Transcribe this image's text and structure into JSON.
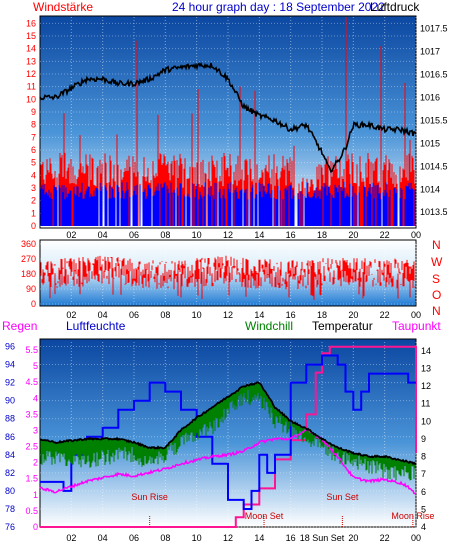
{
  "header": {
    "left_label": "Windstärke",
    "title": "24 hour graph day : 18 September 2022",
    "right_label": "Luftdruck"
  },
  "mid_header": {
    "compass": [
      "N",
      "W",
      "S",
      "O",
      "N"
    ]
  },
  "bottom_header": {
    "regen": "Regen",
    "luftfeuchte": "Luftfeuchte",
    "windchill": "Windchill",
    "temperatur": "Temperatur",
    "taupunkt": "Taupunkt"
  },
  "colors": {
    "wind_gust": "#ff0000",
    "wind_avg": "#0000ff",
    "pressure": "#000000",
    "direction": "#ff0000",
    "humidity": "#0000ff",
    "windchill": "#008000",
    "temperature": "#000000",
    "dewpoint": "#ff00ff",
    "rain": "#ff1493",
    "label_red": "#ff0000",
    "label_blue": "#0000cc",
    "label_green": "#008000",
    "label_magenta": "#ff00ff",
    "sky_top": "#0a4aa0",
    "sky_bottom": "#ffffff"
  },
  "chart_data": [
    {
      "id": "wind_pressure",
      "type": "line",
      "x_ticks": [
        "02",
        "04",
        "06",
        "08",
        "10",
        "12",
        "14",
        "16",
        "18",
        "20",
        "22",
        "00"
      ],
      "y_left_ticks": [
        "0",
        "1",
        "2",
        "3",
        "4",
        "5",
        "6",
        "7",
        "8",
        "9",
        "10",
        "11",
        "12",
        "13",
        "14",
        "15",
        "16"
      ],
      "y_left_range": [
        0,
        16.5
      ],
      "y_right_ticks": [
        "1013.5",
        "1014",
        "1014.5",
        "1015",
        "1015.5",
        "1016",
        "1016.5",
        "1017",
        "1017.5"
      ],
      "y_right_range": [
        1013.2,
        1017.75
      ],
      "series": [
        {
          "name": "Windstärke",
          "axis": "left",
          "kind": "wind_gust",
          "hours": [
            0,
            1,
            2,
            3,
            4,
            5,
            6,
            7,
            8,
            9,
            10,
            11,
            12,
            13,
            14,
            15,
            16,
            17,
            18,
            19,
            20,
            21,
            22,
            23,
            24
          ],
          "values": [
            5.5,
            5.5,
            5.5,
            5.5,
            5.5,
            5.5,
            5.5,
            5.5,
            5.5,
            5.5,
            5.5,
            5.5,
            5.5,
            5.5,
            5.5,
            5.5,
            5.5,
            3.5,
            5.5,
            5.5,
            5.5,
            5.5,
            5.5,
            5.5,
            5.5
          ]
        },
        {
          "name": "Luftdruck",
          "axis": "right",
          "kind": "pressure",
          "hours": [
            0,
            1,
            2,
            3,
            4,
            5,
            6,
            7,
            8,
            9,
            10,
            11,
            12,
            13,
            14,
            15,
            16,
            17,
            18,
            18.5,
            19,
            19.5,
            20,
            21,
            22,
            23,
            24
          ],
          "values": [
            1016.0,
            1016.0,
            1016.2,
            1016.4,
            1016.4,
            1016.3,
            1016.3,
            1016.4,
            1016.6,
            1016.65,
            1016.7,
            1016.7,
            1016.4,
            1015.8,
            1015.6,
            1015.5,
            1015.3,
            1015.4,
            1014.8,
            1014.4,
            1014.6,
            1014.9,
            1015.4,
            1015.4,
            1015.3,
            1015.3,
            1015.2
          ]
        }
      ]
    },
    {
      "id": "wind_direction",
      "type": "line",
      "x_ticks": [
        "02",
        "04",
        "06",
        "08",
        "10",
        "12",
        "14",
        "16",
        "18",
        "20",
        "22",
        "00"
      ],
      "y_ticks": [
        "0",
        "90",
        "180",
        "270",
        "360"
      ],
      "y_range": [
        0,
        360
      ],
      "series": [
        {
          "name": "Windrichtung",
          "kind": "direction",
          "hours": [
            0,
            2,
            4,
            6,
            8,
            10,
            12,
            14,
            16,
            18,
            20,
            22,
            24
          ],
          "values": [
            180,
            190,
            200,
            185,
            170,
            190,
            200,
            180,
            175,
            185,
            195,
            185,
            180
          ]
        }
      ]
    },
    {
      "id": "temp_humidity",
      "type": "line",
      "x_ticks": [
        "02",
        "04",
        "06",
        "08",
        "10",
        "12",
        "14",
        "16",
        "18 Sun Set",
        "20",
        "22",
        "00"
      ],
      "y_rain_ticks": [
        "0",
        "0.5",
        "1",
        "1.5",
        "2",
        "2.5",
        "3",
        "3.5",
        "4",
        "4.5",
        "5",
        "5.5"
      ],
      "y_rain_range": [
        0,
        5.75
      ],
      "y_hum_ticks": [
        "76",
        "78",
        "80",
        "82",
        "84",
        "86",
        "88",
        "90",
        "92",
        "94",
        "96"
      ],
      "y_hum_range": [
        76,
        96.5
      ],
      "y_temp_ticks": [
        "4",
        "5",
        "6",
        "7",
        "8",
        "9",
        "10",
        "11",
        "12",
        "13",
        "14"
      ],
      "y_temp_range": [
        4,
        14.5
      ],
      "annotations": [
        {
          "text": "Sun Rise",
          "hour": 7
        },
        {
          "text": "Moon Set",
          "hour": 14.3
        },
        {
          "text": "Sun Set",
          "hour": 19.3
        },
        {
          "text": "Moon Rise",
          "hour": 23.8
        }
      ],
      "series": [
        {
          "name": "Luftfeuchte",
          "axis": "hum",
          "kind": "humidity",
          "hours": [
            0,
            1,
            1.5,
            2,
            3,
            4,
            5,
            6,
            7,
            8,
            9,
            10,
            11,
            12,
            13,
            13.5,
            14,
            14.5,
            15,
            16,
            17,
            18,
            18.5,
            19,
            19.5,
            20,
            20.5,
            21,
            22,
            23,
            23.5,
            24
          ],
          "values": [
            81,
            81,
            80,
            84,
            86,
            87,
            89,
            90,
            92,
            91,
            89,
            86,
            83,
            79,
            78,
            80,
            84,
            82,
            84,
            92,
            94,
            95,
            95,
            94,
            91,
            89,
            91,
            93,
            93,
            93,
            92,
            92
          ]
        },
        {
          "name": "Windchill",
          "axis": "temp",
          "kind": "windchill",
          "hours": [
            0,
            1,
            2,
            3,
            4,
            5,
            6,
            7,
            8,
            9,
            10,
            11,
            12,
            13,
            14,
            15,
            16,
            17,
            18,
            19,
            20,
            21,
            22,
            23,
            24
          ],
          "values": [
            8.4,
            8.4,
            8.3,
            8.2,
            8.4,
            8.5,
            8.6,
            8.0,
            8.6,
            9.2,
            9.8,
            10.1,
            11.0,
            11.8,
            11.8,
            10.5,
            10.0,
            9.5,
            9.0,
            8.5,
            8.2,
            7.9,
            7.6,
            7.5,
            7.5
          ]
        },
        {
          "name": "Temperatur",
          "axis": "temp",
          "kind": "temperature",
          "hours": [
            0,
            1,
            2,
            3,
            4,
            5,
            6,
            7,
            8,
            9,
            10,
            11,
            12,
            13,
            14,
            15,
            16,
            17,
            18,
            19,
            20,
            21,
            22,
            23,
            24
          ],
          "values": [
            9.0,
            8.8,
            8.9,
            9.0,
            9.0,
            9.0,
            8.8,
            8.5,
            8.5,
            9.5,
            10.2,
            10.8,
            11.4,
            12.0,
            12.2,
            10.8,
            10.0,
            9.6,
            9.0,
            8.5,
            8.2,
            8.0,
            8.0,
            7.8,
            7.6
          ]
        },
        {
          "name": "Taupunkt",
          "axis": "temp",
          "kind": "dewpoint",
          "hours": [
            0,
            1,
            2,
            3,
            4,
            5,
            6,
            7,
            8,
            9,
            10,
            11,
            12,
            13,
            14,
            15,
            16,
            17,
            18,
            19,
            20,
            21,
            22,
            23,
            23.5,
            24
          ],
          "values": [
            6.2,
            6.0,
            6.3,
            6.6,
            6.8,
            7.0,
            6.9,
            7.1,
            7.3,
            7.6,
            7.8,
            8.0,
            8.1,
            8.3,
            8.8,
            9.0,
            9.0,
            9.5,
            9.0,
            8.0,
            6.8,
            6.6,
            6.7,
            6.5,
            6.3,
            5.8
          ]
        },
        {
          "name": "Regen",
          "axis": "rain",
          "kind": "rain",
          "hours": [
            0,
            11.8,
            12.5,
            13,
            14,
            15,
            16,
            17,
            17.6,
            18,
            18.5,
            19.5,
            24
          ],
          "values": [
            0,
            0,
            0.3,
            0.7,
            1.2,
            2.1,
            2.7,
            3.5,
            4.8,
            5.4,
            5.6,
            5.6,
            5.6
          ]
        }
      ]
    }
  ]
}
